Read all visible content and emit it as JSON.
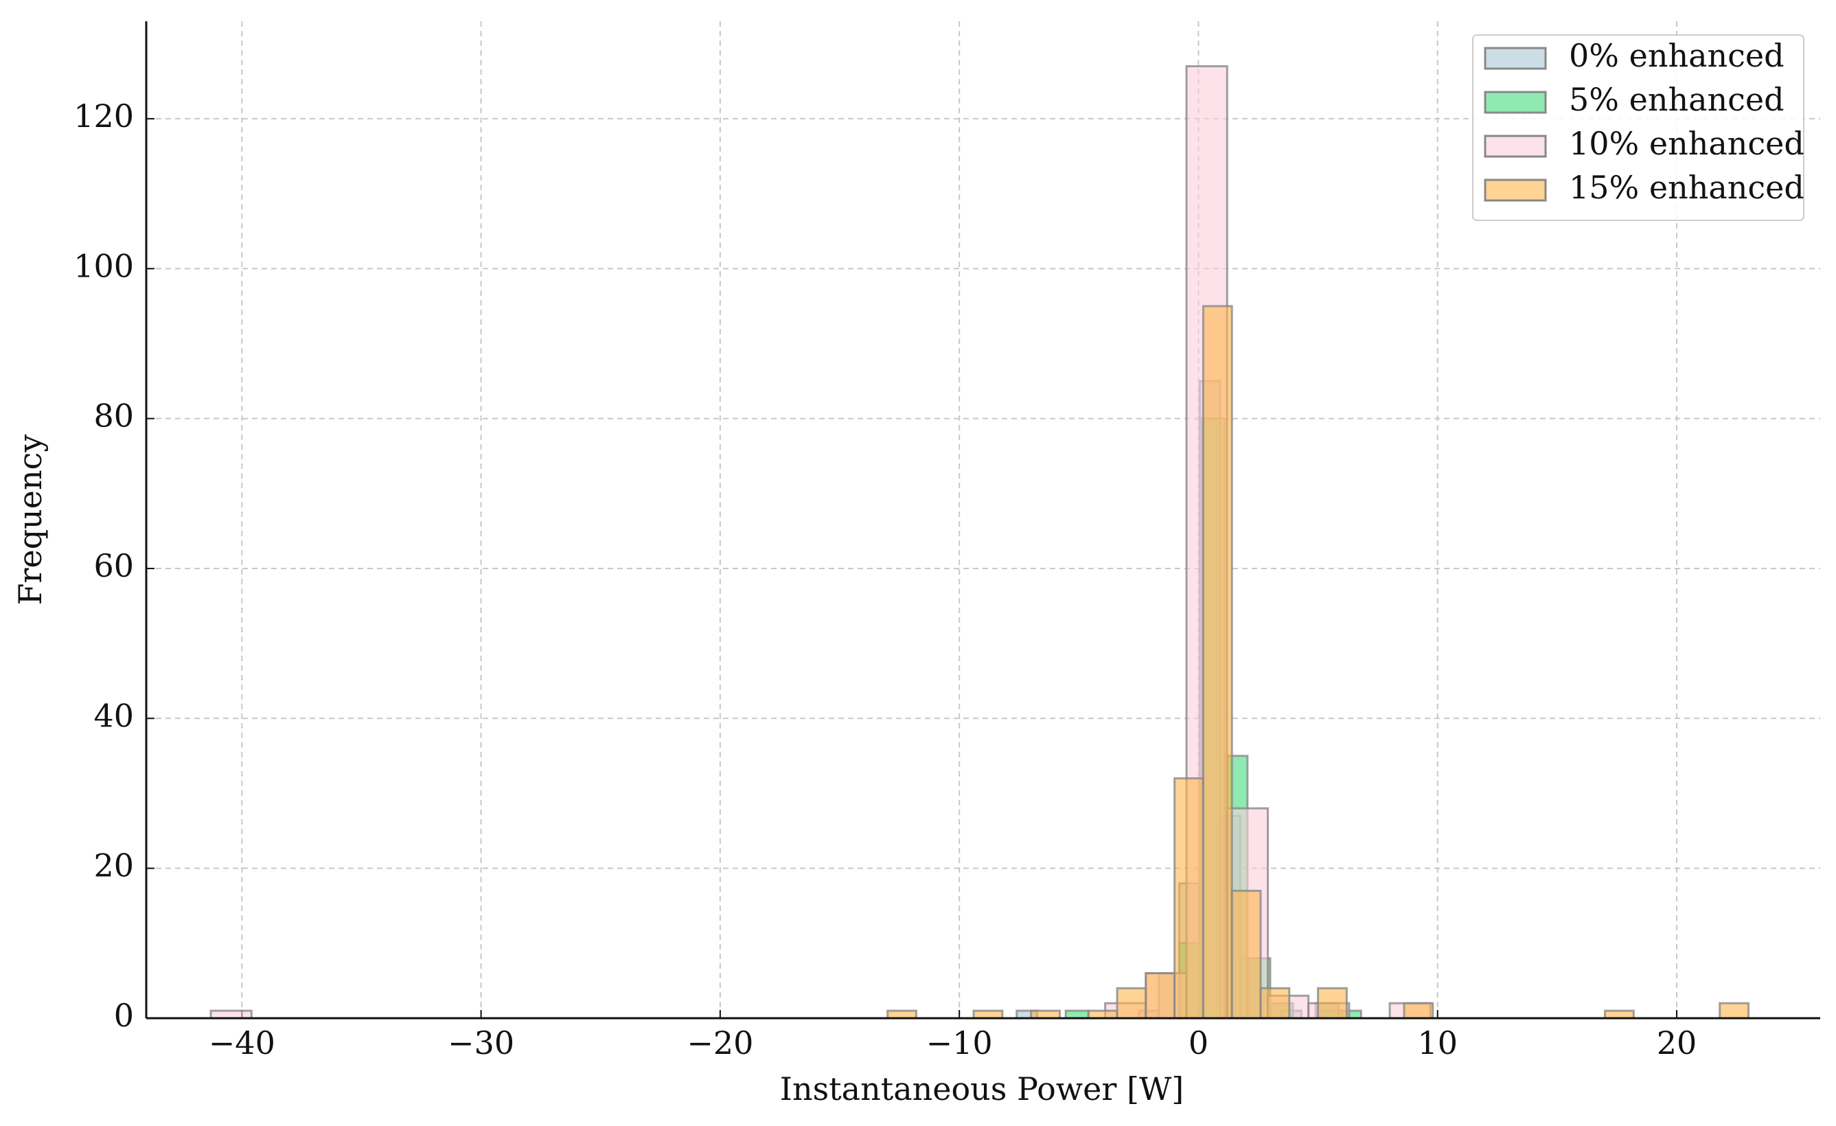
{
  "chart_data": {
    "type": "histogram",
    "xlabel": "Instantaneous Power [W]",
    "ylabel": "Frequency",
    "xlim": [
      -44,
      26
    ],
    "ylim": [
      0,
      133
    ],
    "xticks": [
      {
        "value": -40,
        "label": "−40"
      },
      {
        "value": -30,
        "label": "−30"
      },
      {
        "value": -20,
        "label": "−20"
      },
      {
        "value": -10,
        "label": "−10"
      },
      0,
      10,
      20
    ],
    "yticks": [
      0,
      20,
      40,
      60,
      80,
      100,
      120
    ],
    "grid": true,
    "legend": "upper right",
    "series": [
      {
        "name": "0% enhanced",
        "color": "#a9c6d6",
        "bins": [
          -7.6,
          -6.75,
          -5.9,
          -5.05,
          -4.2,
          -3.35,
          -2.5,
          -1.65,
          -0.8,
          0.05,
          0.9,
          1.75,
          2.6,
          3.45,
          4.3,
          5.15,
          6.0,
          6.85,
          7.7
        ],
        "values": [
          1,
          0,
          0,
          0,
          0,
          0,
          1,
          6,
          18,
          85,
          27,
          8,
          0,
          1,
          0,
          1,
          0,
          0
        ]
      },
      {
        "name": "5% enhanced",
        "color": "#44dc7e",
        "bins": [
          -6.5,
          -5.55,
          -4.6,
          -3.65,
          -2.7,
          -1.75,
          -0.8,
          0.15,
          1.1,
          2.05,
          3.0,
          3.95,
          4.9,
          5.85,
          6.8
        ],
        "values": [
          0,
          1,
          0,
          0,
          0,
          0,
          10,
          80,
          35,
          8,
          2,
          0,
          2,
          1
        ]
      },
      {
        "name": "10% enhanced",
        "color": "#fccfdc",
        "bins": [
          -41.3,
          -39.6,
          -37.9,
          -36.2,
          -34.5,
          -32.8,
          -31.1,
          -29.4,
          -27.7,
          -26.0,
          -24.3,
          -22.6,
          -20.9,
          -19.2,
          -17.5,
          -15.8,
          -14.1,
          -12.4,
          -10.7,
          -9.0,
          -7.3,
          -5.6,
          -3.9,
          -2.2,
          -0.5,
          1.2,
          2.9,
          4.6,
          6.3,
          8.0,
          9.7
        ],
        "values": [
          1,
          0,
          0,
          0,
          0,
          0,
          0,
          0,
          0,
          0,
          0,
          0,
          0,
          0,
          0,
          0,
          0,
          0,
          0,
          0,
          0,
          0,
          2,
          6,
          127,
          28,
          3,
          2,
          0,
          2
        ]
      },
      {
        "name": "15% enhanced",
        "color": "#ffb54c",
        "bins": [
          -13.0,
          -11.8,
          -10.6,
          -9.4,
          -8.2,
          -7.0,
          -5.8,
          -4.6,
          -3.4,
          -2.2,
          -1.0,
          0.2,
          1.4,
          2.6,
          3.8,
          5.0,
          6.2,
          7.4,
          8.6,
          9.8,
          11.0,
          12.2,
          13.4,
          14.6,
          15.8,
          17.0,
          18.2,
          19.4,
          20.6,
          21.8,
          23.0
        ],
        "values": [
          1,
          0,
          0,
          1,
          0,
          1,
          0,
          1,
          4,
          6,
          32,
          95,
          17,
          4,
          0,
          4,
          0,
          0,
          2,
          0,
          0,
          0,
          0,
          0,
          0,
          1,
          0,
          0,
          0,
          2
        ]
      }
    ]
  }
}
